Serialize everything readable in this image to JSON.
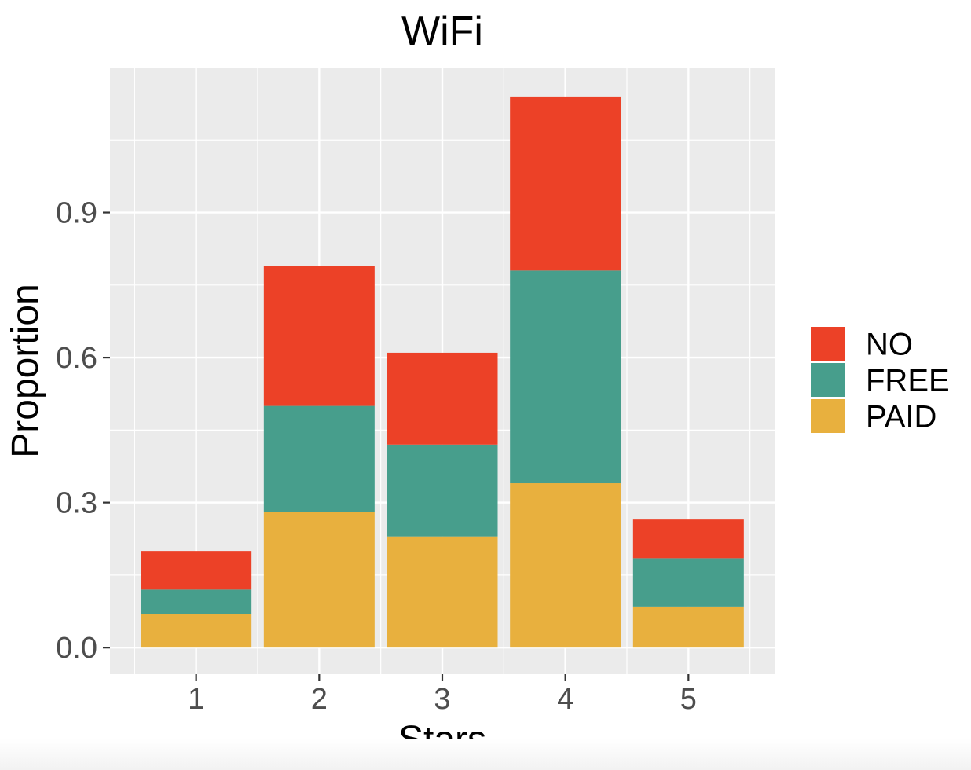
{
  "chart_data": {
    "type": "bar",
    "stacked": true,
    "title": "WiFi",
    "xlabel": "Stars",
    "ylabel": "Proportion",
    "categories": [
      "1",
      "2",
      "3",
      "4",
      "5"
    ],
    "series": [
      {
        "name": "PAID",
        "color": "#E8B03E",
        "values": [
          0.07,
          0.28,
          0.23,
          0.34,
          0.085
        ]
      },
      {
        "name": "FREE",
        "color": "#479E8C",
        "values": [
          0.05,
          0.22,
          0.19,
          0.44,
          0.1
        ]
      },
      {
        "name": "NO",
        "color": "#EC4127",
        "values": [
          0.08,
          0.29,
          0.19,
          0.36,
          0.08
        ]
      }
    ],
    "ylim": [
      -0.055,
      1.2
    ],
    "yticks": [
      0.0,
      0.3,
      0.6,
      0.9
    ],
    "ytick_labels": [
      "0.0",
      "0.3",
      "0.6",
      "0.9"
    ],
    "grid": true,
    "legend": {
      "placement": "right",
      "order": [
        "NO",
        "FREE",
        "PAID"
      ]
    },
    "panel_background": "#EBEBEB",
    "grid_color": "#FFFFFF"
  }
}
